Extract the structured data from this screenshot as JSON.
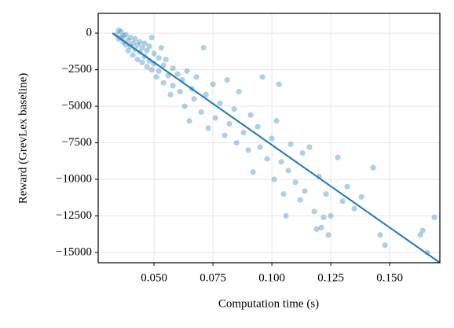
{
  "chart_data": {
    "type": "scatter",
    "xlabel": "Computation time (s)",
    "ylabel": "Reward (GrevLex baseline)",
    "xlim": [
      0.0263,
      0.1713
    ],
    "ylim": [
      -15700,
      1350
    ],
    "xticks": [
      {
        "value": 0.05,
        "label": "0.050"
      },
      {
        "value": 0.075,
        "label": "0.075"
      },
      {
        "value": 0.1,
        "label": "0.100"
      },
      {
        "value": 0.125,
        "label": "0.125"
      },
      {
        "value": 0.15,
        "label": "0.150"
      }
    ],
    "yticks": [
      0,
      {
        "value": -2500,
        "label": "−2500"
      },
      {
        "value": -5000,
        "label": "−5000"
      },
      {
        "value": -7500,
        "label": "−7500"
      },
      {
        "value": -10000,
        "label": "−10000"
      },
      {
        "value": -12500,
        "label": "−12500"
      },
      {
        "value": -15000,
        "label": "−15000"
      }
    ],
    "grid": true,
    "series": [
      {
        "type": "scatter",
        "color": "#1f77b4",
        "x": [
          0.034,
          0.035,
          0.035,
          0.036,
          0.036,
          0.037,
          0.037,
          0.038,
          0.038,
          0.039,
          0.039,
          0.04,
          0.04,
          0.041,
          0.041,
          0.042,
          0.042,
          0.043,
          0.043,
          0.044,
          0.044,
          0.045,
          0.045,
          0.046,
          0.046,
          0.047,
          0.047,
          0.048,
          0.048,
          0.049,
          0.049,
          0.05,
          0.05,
          0.051,
          0.052,
          0.052,
          0.053,
          0.054,
          0.054,
          0.055,
          0.056,
          0.057,
          0.058,
          0.058,
          0.06,
          0.061,
          0.062,
          0.063,
          0.064,
          0.065,
          0.066,
          0.067,
          0.068,
          0.07,
          0.071,
          0.072,
          0.073,
          0.075,
          0.076,
          0.078,
          0.08,
          0.081,
          0.082,
          0.084,
          0.085,
          0.086,
          0.088,
          0.09,
          0.091,
          0.092,
          0.094,
          0.095,
          0.096,
          0.098,
          0.1,
          0.101,
          0.102,
          0.103,
          0.104,
          0.105,
          0.106,
          0.107,
          0.108,
          0.11,
          0.112,
          0.113,
          0.114,
          0.116,
          0.118,
          0.119,
          0.12,
          0.121,
          0.122,
          0.123,
          0.124,
          0.125,
          0.128,
          0.13,
          0.132,
          0.135,
          0.138,
          0.143,
          0.146,
          0.148,
          0.163,
          0.164,
          0.166,
          0.169
        ],
        "values": [
          -100,
          200,
          -400,
          -300,
          100,
          -600,
          -200,
          -800,
          -100,
          -500,
          -1200,
          -300,
          -900,
          -700,
          -1500,
          -400,
          -1100,
          -1800,
          -800,
          -600,
          -1300,
          -2000,
          -1000,
          -700,
          -1600,
          -2300,
          -1200,
          -900,
          -1900,
          -300,
          -2500,
          -1400,
          -2100,
          -3000,
          -1700,
          -2600,
          -1000,
          -2200,
          -3400,
          -1800,
          -2900,
          -4200,
          -2400,
          -3600,
          -2800,
          -4000,
          -3200,
          -5000,
          -2600,
          -6000,
          -3800,
          -4500,
          -3000,
          -5400,
          -1000,
          -4200,
          -6500,
          -3500,
          -5800,
          -4800,
          -7000,
          -3200,
          -6200,
          -5200,
          -7500,
          -4000,
          -6800,
          -8000,
          -5600,
          -9500,
          -6400,
          -7800,
          -3000,
          -8600,
          -7200,
          -10000,
          -6000,
          -3500,
          -8800,
          -11000,
          -12500,
          -9400,
          -7600,
          -10200,
          -11400,
          -8200,
          -10800,
          -7800,
          -12200,
          -13400,
          -9800,
          -13300,
          -12600,
          -11000,
          -13800,
          -12500,
          -8500,
          -11500,
          -10500,
          -12000,
          -11200,
          -9200,
          -13800,
          -14500,
          -13800,
          -13500,
          -15000,
          -12600
        ]
      },
      {
        "type": "line",
        "color": "#1f77b4",
        "x": [
          0.0323,
          0.1713
        ],
        "values": [
          0,
          -15700
        ]
      }
    ]
  }
}
